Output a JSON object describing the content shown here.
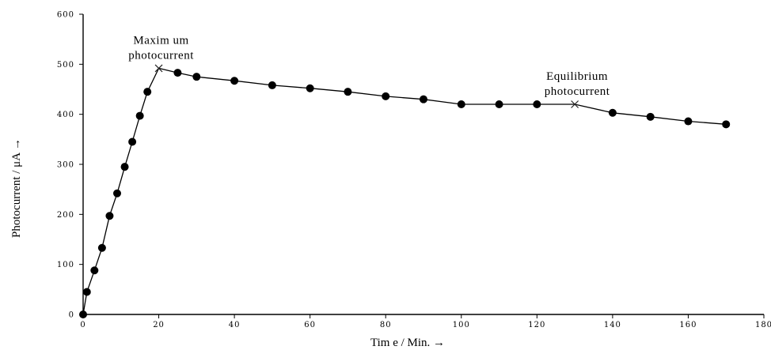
{
  "chart_data": {
    "type": "line",
    "xlabel": "Tim e / Min. →",
    "ylabel": "Photocurrent / μA →",
    "xlim": [
      0,
      180
    ],
    "ylim": [
      0,
      600
    ],
    "xticks": [
      0,
      20,
      40,
      60,
      80,
      100,
      120,
      140,
      160,
      180
    ],
    "yticks": [
      0,
      100,
      200,
      300,
      400,
      500,
      600
    ],
    "grid": false,
    "legend": "none",
    "series": [
      {
        "color": "#000000",
        "marker": "circle",
        "x": [
          0,
          1,
          3,
          5,
          7,
          9,
          11,
          13,
          15,
          17,
          20,
          25,
          30,
          40,
          50,
          60,
          70,
          80,
          90,
          100,
          110,
          120,
          130,
          140,
          150,
          160,
          170
        ],
        "y": [
          0,
          45,
          88,
          133,
          197,
          242,
          295,
          345,
          397,
          445,
          492,
          483,
          475,
          467,
          458,
          452,
          445,
          436,
          430,
          420,
          420,
          420,
          420,
          403,
          395,
          386,
          380
        ],
        "unmarked_x": [
          20,
          130
        ]
      }
    ],
    "annotations": [
      {
        "lines": [
          "Maxim um",
          "photocurrent"
        ],
        "x": 20,
        "y": 492,
        "marker": "x"
      },
      {
        "lines": [
          "Equilibrium",
          "photocurrent"
        ],
        "x": 130,
        "y": 420,
        "marker": "x"
      }
    ]
  }
}
